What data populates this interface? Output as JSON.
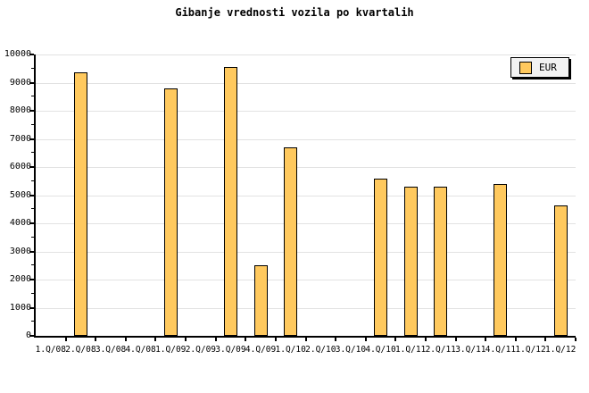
{
  "chart_data": {
    "type": "bar",
    "title": "Gibanje vrednosti vozila po kvartalih",
    "series_name": "EUR",
    "categories": [
      "1.Q/08",
      "2.Q/08",
      "3.Q/08",
      "4.Q/08",
      "1.Q/09",
      "2.Q/09",
      "3.Q/09",
      "4.Q/09",
      "1.Q/10",
      "2.Q/10",
      "3.Q/10",
      "4.Q/10",
      "1.Q/11",
      "2.Q/11",
      "3.Q/11",
      "4.Q/11",
      "1.Q/12",
      "1.Q/12"
    ],
    "values": [
      null,
      9350,
      null,
      null,
      8800,
      null,
      9550,
      2500,
      6700,
      null,
      null,
      5600,
      5300,
      5300,
      null,
      5400,
      null,
      4650
    ],
    "xlabel": "",
    "ylabel": "",
    "ylim": [
      0,
      10000
    ],
    "ytick_step": 1000,
    "yminor_step": 500,
    "grid": true,
    "legend_position": "top-right",
    "colors": {
      "bar": "#FFC95E",
      "bar_border": "#000000",
      "grid": "#E2E2E2",
      "axis": "#000000",
      "legend_bg": "#F2F2F2",
      "background": "#FFFFFF"
    }
  }
}
